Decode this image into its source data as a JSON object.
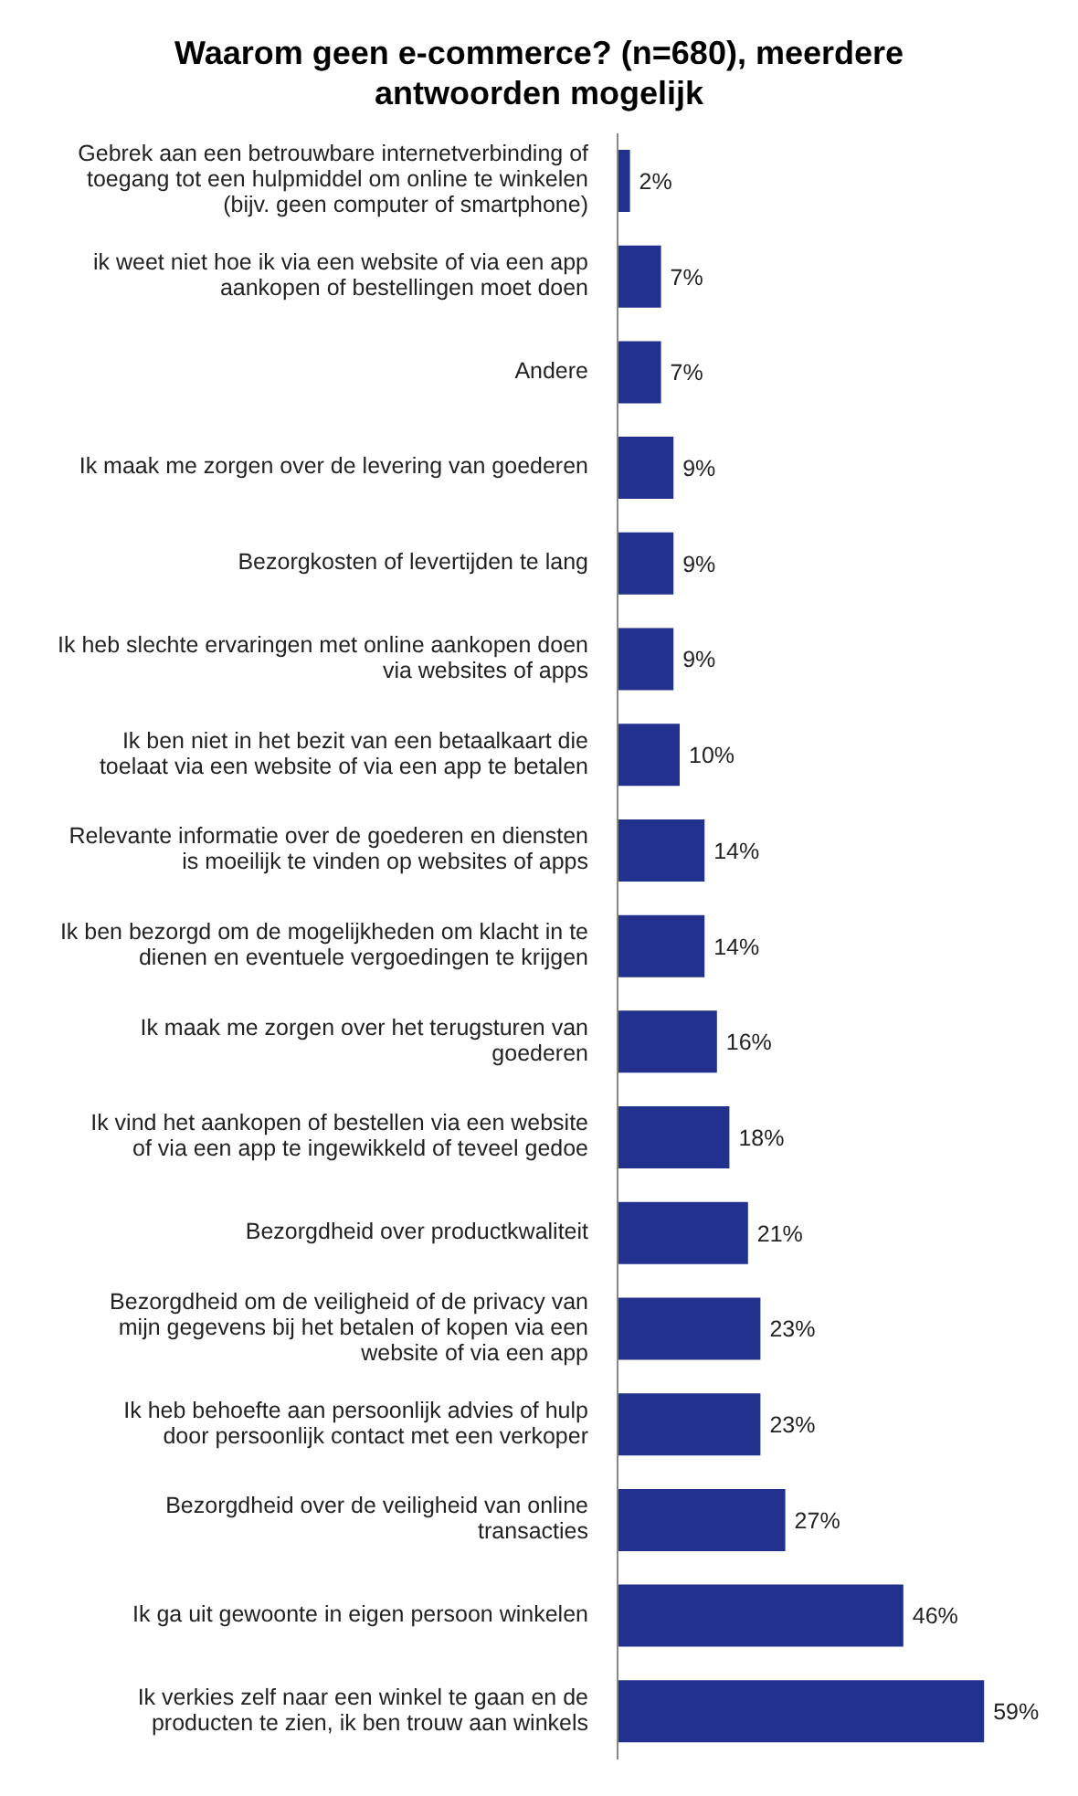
{
  "chart_data": {
    "type": "bar",
    "orientation": "horizontal",
    "title": "Waarom geen e-commerce? (n=680), meerdere antwoorden mogelijk",
    "categories": [
      "Gebrek aan een betrouwbare internetverbinding of toegang tot een hulpmiddel om online te winkelen (bijv. geen computer of smartphone)",
      "ik weet niet hoe ik via een website of via een app aankopen of bestellingen moet doen",
      "Andere",
      "Ik maak me zorgen over de levering van goederen",
      "Bezorgkosten of levertijden te lang",
      "Ik heb slechte ervaringen met online aankopen doen via websites of apps",
      "Ik ben niet in het bezit van een betaalkaart die toelaat via een website of via een app te betalen",
      "Relevante informatie over de goederen en diensten is moeilijk te vinden op websites of apps",
      "Ik ben bezorgd om de mogelijkheden om klacht in te dienen en eventuele vergoedingen te krijgen",
      "Ik maak me zorgen over het terugsturen van goederen",
      "Ik vind het aankopen of bestellen via een website of via een app te ingewikkeld of teveel gedoe",
      "Bezorgdheid over productkwaliteit",
      "Bezorgdheid om de veiligheid of de privacy van mijn gegevens bij het betalen of kopen via een website of via een app",
      "Ik heb behoefte aan persoonlijk advies of hulp door persoonlijk contact met een verkoper",
      "Bezorgdheid over de veiligheid van online transacties",
      "Ik ga uit gewoonte in eigen persoon winkelen",
      "Ik verkies zelf naar een winkel te gaan en de producten te zien, ik ben trouw aan winkels"
    ],
    "values": [
      2,
      7,
      7,
      9,
      9,
      9,
      10,
      14,
      14,
      16,
      18,
      21,
      23,
      23,
      27,
      46,
      59
    ],
    "value_labels": [
      "2%",
      "7%",
      "7%",
      "9%",
      "9%",
      "9%",
      "10%",
      "14%",
      "14%",
      "16%",
      "18%",
      "21%",
      "23%",
      "23%",
      "27%",
      "46%",
      "59%"
    ],
    "color": "#23318e",
    "xlim": [
      0,
      60
    ],
    "tick_labels": "y"
  }
}
